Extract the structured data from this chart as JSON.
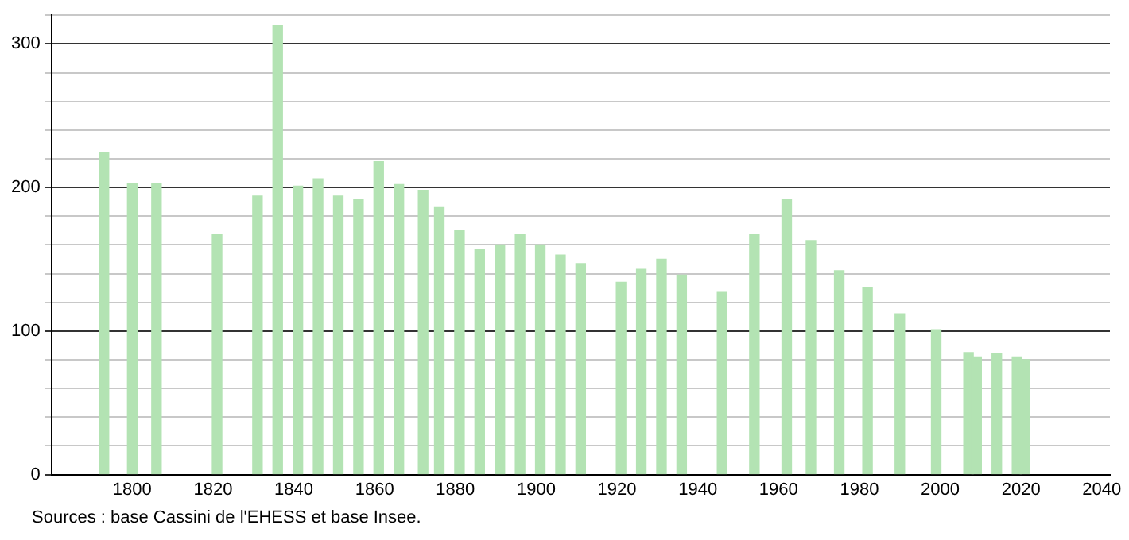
{
  "chart_data": {
    "type": "bar",
    "x": [
      1793,
      1800,
      1806,
      1821,
      1831,
      1836,
      1841,
      1846,
      1851,
      1856,
      1861,
      1866,
      1872,
      1876,
      1881,
      1886,
      1891,
      1896,
      1901,
      1906,
      1911,
      1921,
      1926,
      1931,
      1936,
      1946,
      1954,
      1962,
      1968,
      1975,
      1982,
      1990,
      1999,
      2007,
      2009,
      2014,
      2019,
      2021
    ],
    "values": [
      224,
      203,
      203,
      167,
      194,
      313,
      201,
      206,
      194,
      192,
      218,
      202,
      198,
      186,
      170,
      157,
      160,
      167,
      160,
      153,
      147,
      134,
      143,
      150,
      139,
      127,
      167,
      192,
      163,
      142,
      130,
      112,
      101,
      85,
      82,
      84,
      82,
      80
    ],
    "color": "#b3e3b3",
    "xlim": [
      1780,
      2042
    ],
    "xticks": [
      1800,
      1820,
      1840,
      1860,
      1880,
      1900,
      1920,
      1940,
      1960,
      1980,
      2000,
      2020,
      2040
    ],
    "ylim": [
      0,
      320
    ],
    "yticks": [
      0,
      {
        "value": 20,
        "label": null
      },
      {
        "value": 40,
        "label": null
      },
      {
        "value": 60,
        "label": null
      },
      {
        "value": 80,
        "label": null
      },
      100,
      {
        "value": 120,
        "label": null
      },
      {
        "value": 140,
        "label": null
      },
      {
        "value": 160,
        "label": null
      },
      {
        "value": 180,
        "label": null
      },
      200,
      {
        "value": 220,
        "label": null
      },
      {
        "value": 240,
        "label": null
      },
      {
        "value": 260,
        "label": null
      },
      {
        "value": 280,
        "label": null
      },
      300,
      {
        "value": 320,
        "label": null
      }
    ],
    "grid": "y",
    "annotations": [
      "Sources : base Cassini de l'EHESS et base Insee."
    ]
  }
}
